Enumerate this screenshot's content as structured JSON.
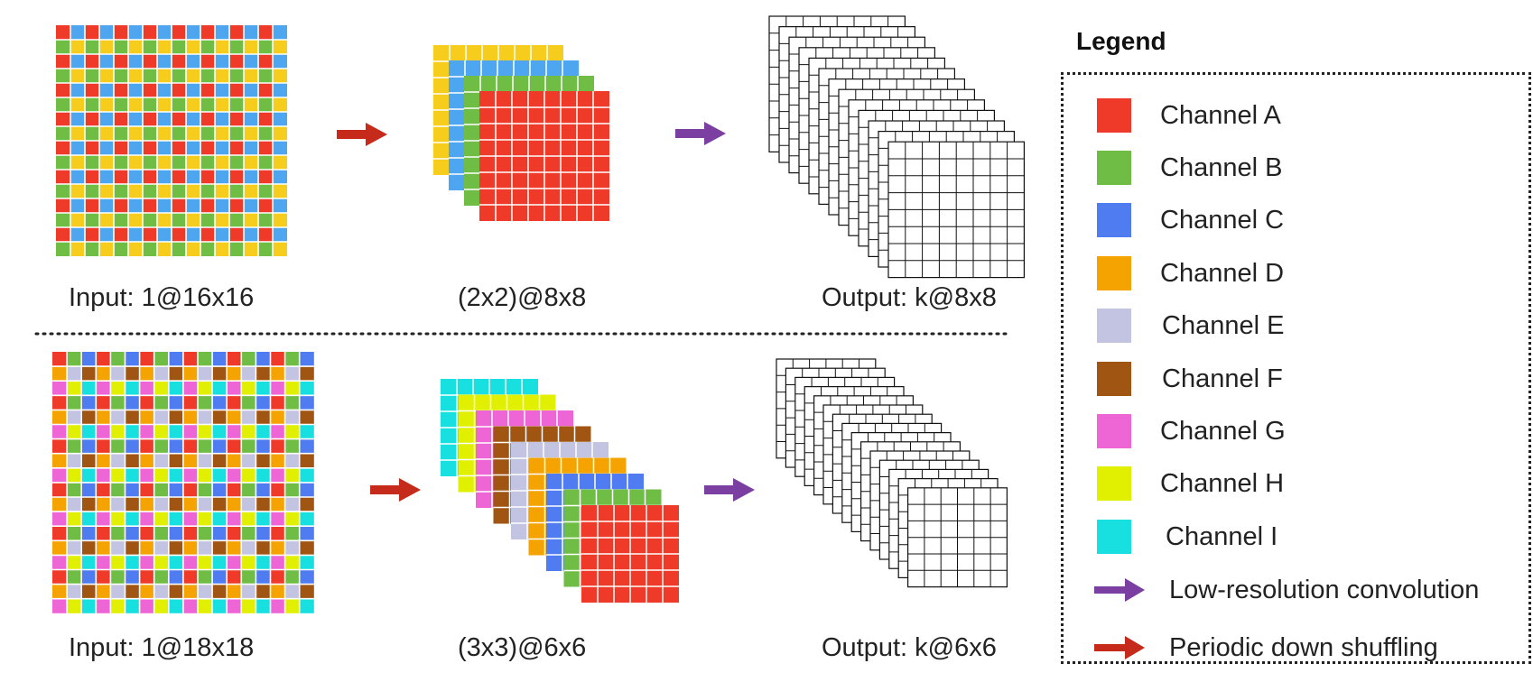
{
  "captions": {
    "top_input": "Input: 1@16x16",
    "top_shuffled": "(2x2)@8x8",
    "top_output": "Output: k@8x8",
    "bottom_input": "Input: 1@18x18",
    "bottom_shuffled": "(3x3)@6x6",
    "bottom_output": "Output: k@6x6"
  },
  "legend": {
    "title": "Legend",
    "channels": [
      {
        "label": "Channel A",
        "color": "#ef3a2a"
      },
      {
        "label": "Channel B",
        "color": "#6fbd45"
      },
      {
        "label": "Channel C",
        "color": "#4f7df1"
      },
      {
        "label": "Channel D",
        "color": "#f4a300"
      },
      {
        "label": "Channel E",
        "color": "#c3c3e2"
      },
      {
        "label": "Channel F",
        "color": "#a15512"
      },
      {
        "label": "Channel G",
        "color": "#ee66d6"
      },
      {
        "label": "Channel H",
        "color": "#e1ef00"
      },
      {
        "label": "Channel I",
        "color": "#19e0e0"
      }
    ],
    "arrows": [
      {
        "label": "Low-resolution convolution",
        "color": "#7a3fa0"
      },
      {
        "label": "Periodic down shuffling",
        "color": "#c62a1b"
      }
    ]
  },
  "top_colors": {
    "channel_a": "#ef3a2a",
    "channel_b": "#6fbd45",
    "channel_c": "#4fa6f0",
    "channel_d": "#f6cd1c"
  }
}
